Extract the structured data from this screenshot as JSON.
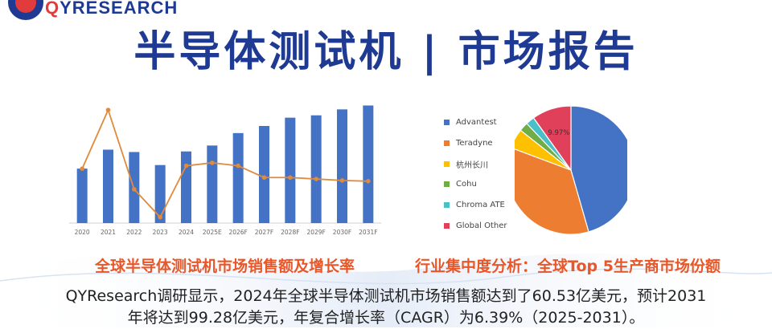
{
  "brand": {
    "logo_text_q": "Q",
    "logo_text_rest": "YRESEARCH"
  },
  "header": {
    "title": "半导体测试机 | 市场报告"
  },
  "captions": {
    "left": "全球半导体测试机市场销售额及增长率",
    "right": "行业集中度分析：全球Top 5生产商市场份额"
  },
  "summary": {
    "line1": "QYResearch调研显示，2024年全球半导体测试机市场销售额达到了60.53亿美元，预计2031",
    "line2": "年将达到99.28亿美元，年复合增长率（CAGR）为6.39%（2025-2031）。"
  },
  "colors": {
    "bar": "#4472c4",
    "line": "#e08a3c",
    "title": "#1f3a93",
    "caption": "#e8572a"
  },
  "chart_data": [
    {
      "type": "bar",
      "combo_line": true,
      "categories": [
        "2020",
        "2021",
        "2022",
        "2023",
        "2024",
        "2025E",
        "2026F",
        "2027F",
        "2028F",
        "2029F",
        "2030F",
        "2031F"
      ],
      "series": [
        {
          "values": [
            4.6,
            6.2,
            6.0,
            4.9,
            6.05,
            6.55,
            7.6,
            8.2,
            8.9,
            9.1,
            9.6,
            9.93
          ]
        },
        {
          "values": [
            0.22,
            0.62,
            0.08,
            -0.11,
            0.24,
            0.26,
            0.24,
            0.16,
            0.16,
            0.15,
            0.14,
            0.135
          ]
        }
      ],
      "title": "",
      "xlabel": "",
      "ylabel": "",
      "grid": false,
      "legend": "none"
    },
    {
      "type": "pie",
      "title": "",
      "legend": "left",
      "slices": [
        {
          "name": "Advantest",
          "value": 46.0,
          "color": "#4472c4"
        },
        {
          "name": "Teradyne",
          "value": 35.5,
          "color": "#ed7d31"
        },
        {
          "name": "杭州长川",
          "value": 5.0,
          "color": "#ffc000"
        },
        {
          "name": "Cohu",
          "value": 2.3,
          "color": "#70ad47"
        },
        {
          "name": "Chroma ATE",
          "value": 2.2,
          "color": "#4bbfc8"
        },
        {
          "name": "Global Other",
          "value": 9.97,
          "color": "#e0405a"
        }
      ],
      "data_label": "9.97%"
    }
  ]
}
